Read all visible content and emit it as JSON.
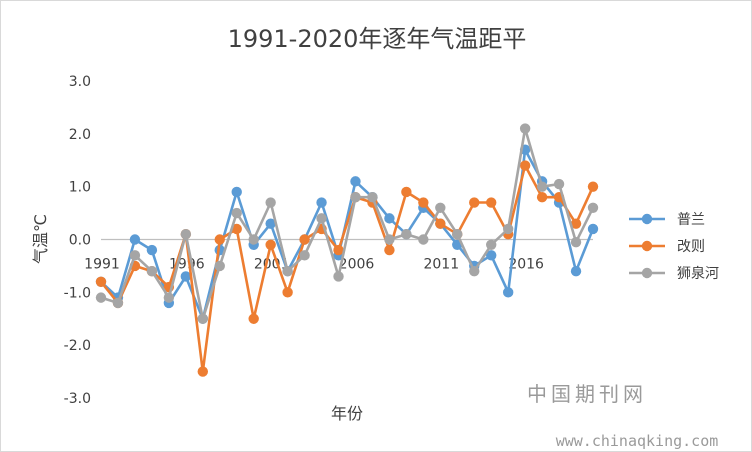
{
  "chart_data": {
    "type": "line",
    "title": "1991-2020年逐年气温距平",
    "xlabel": "年份",
    "ylabel": "气温℃",
    "ylim": [
      -3.0,
      3.0
    ],
    "y_ticks": [
      "3.0",
      "2.0",
      "1.0",
      "0.0",
      "-1.0",
      "-2.0",
      "-3.0"
    ],
    "x": [
      1991,
      1992,
      1993,
      1994,
      1995,
      1996,
      1997,
      1998,
      1999,
      2000,
      2001,
      2002,
      2003,
      2004,
      2005,
      2006,
      2007,
      2008,
      2009,
      2010,
      2011,
      2012,
      2013,
      2014,
      2015,
      2016,
      2017,
      2018,
      2019,
      2020
    ],
    "x_tick_labels": [
      "1991",
      "1996",
      "2001",
      "2006",
      "2011",
      "2016"
    ],
    "grid": false,
    "legend_position": "right",
    "series": [
      {
        "name": "普兰",
        "color": "#5b9bd5",
        "values": [
          -0.8,
          -1.1,
          0.0,
          -0.2,
          -1.2,
          -0.7,
          -1.5,
          -0.2,
          0.9,
          -0.1,
          0.3,
          -0.6,
          0.0,
          0.7,
          -0.3,
          1.1,
          0.8,
          0.4,
          0.1,
          0.6,
          0.3,
          -0.1,
          -0.5,
          -0.3,
          -1.0,
          1.7,
          1.1,
          0.7,
          -0.6,
          0.2
        ]
      },
      {
        "name": "改则",
        "color": "#ed7d31",
        "values": [
          -0.8,
          -1.2,
          -0.5,
          -0.6,
          -0.9,
          0.1,
          -2.5,
          0.0,
          0.2,
          -1.5,
          -0.1,
          -1.0,
          0.0,
          0.2,
          -0.2,
          0.8,
          0.7,
          -0.2,
          0.9,
          0.7,
          0.3,
          0.1,
          0.7,
          0.7,
          0.1,
          1.4,
          0.8,
          0.8,
          0.3,
          1.0
        ]
      },
      {
        "name": "狮泉河",
        "color": "#a5a5a5",
        "values": [
          -1.1,
          -1.2,
          -0.3,
          -0.6,
          -1.1,
          0.1,
          -1.5,
          -0.5,
          0.5,
          0.0,
          0.7,
          -0.6,
          -0.3,
          0.4,
          -0.7,
          0.8,
          0.8,
          0.0,
          0.1,
          0.0,
          0.6,
          0.1,
          -0.6,
          -0.1,
          0.2,
          2.1,
          1.0,
          1.05,
          -0.05,
          0.6
        ]
      }
    ]
  },
  "watermark": {
    "text": "中国期刊网",
    "url": "www.chinaqking.com"
  }
}
